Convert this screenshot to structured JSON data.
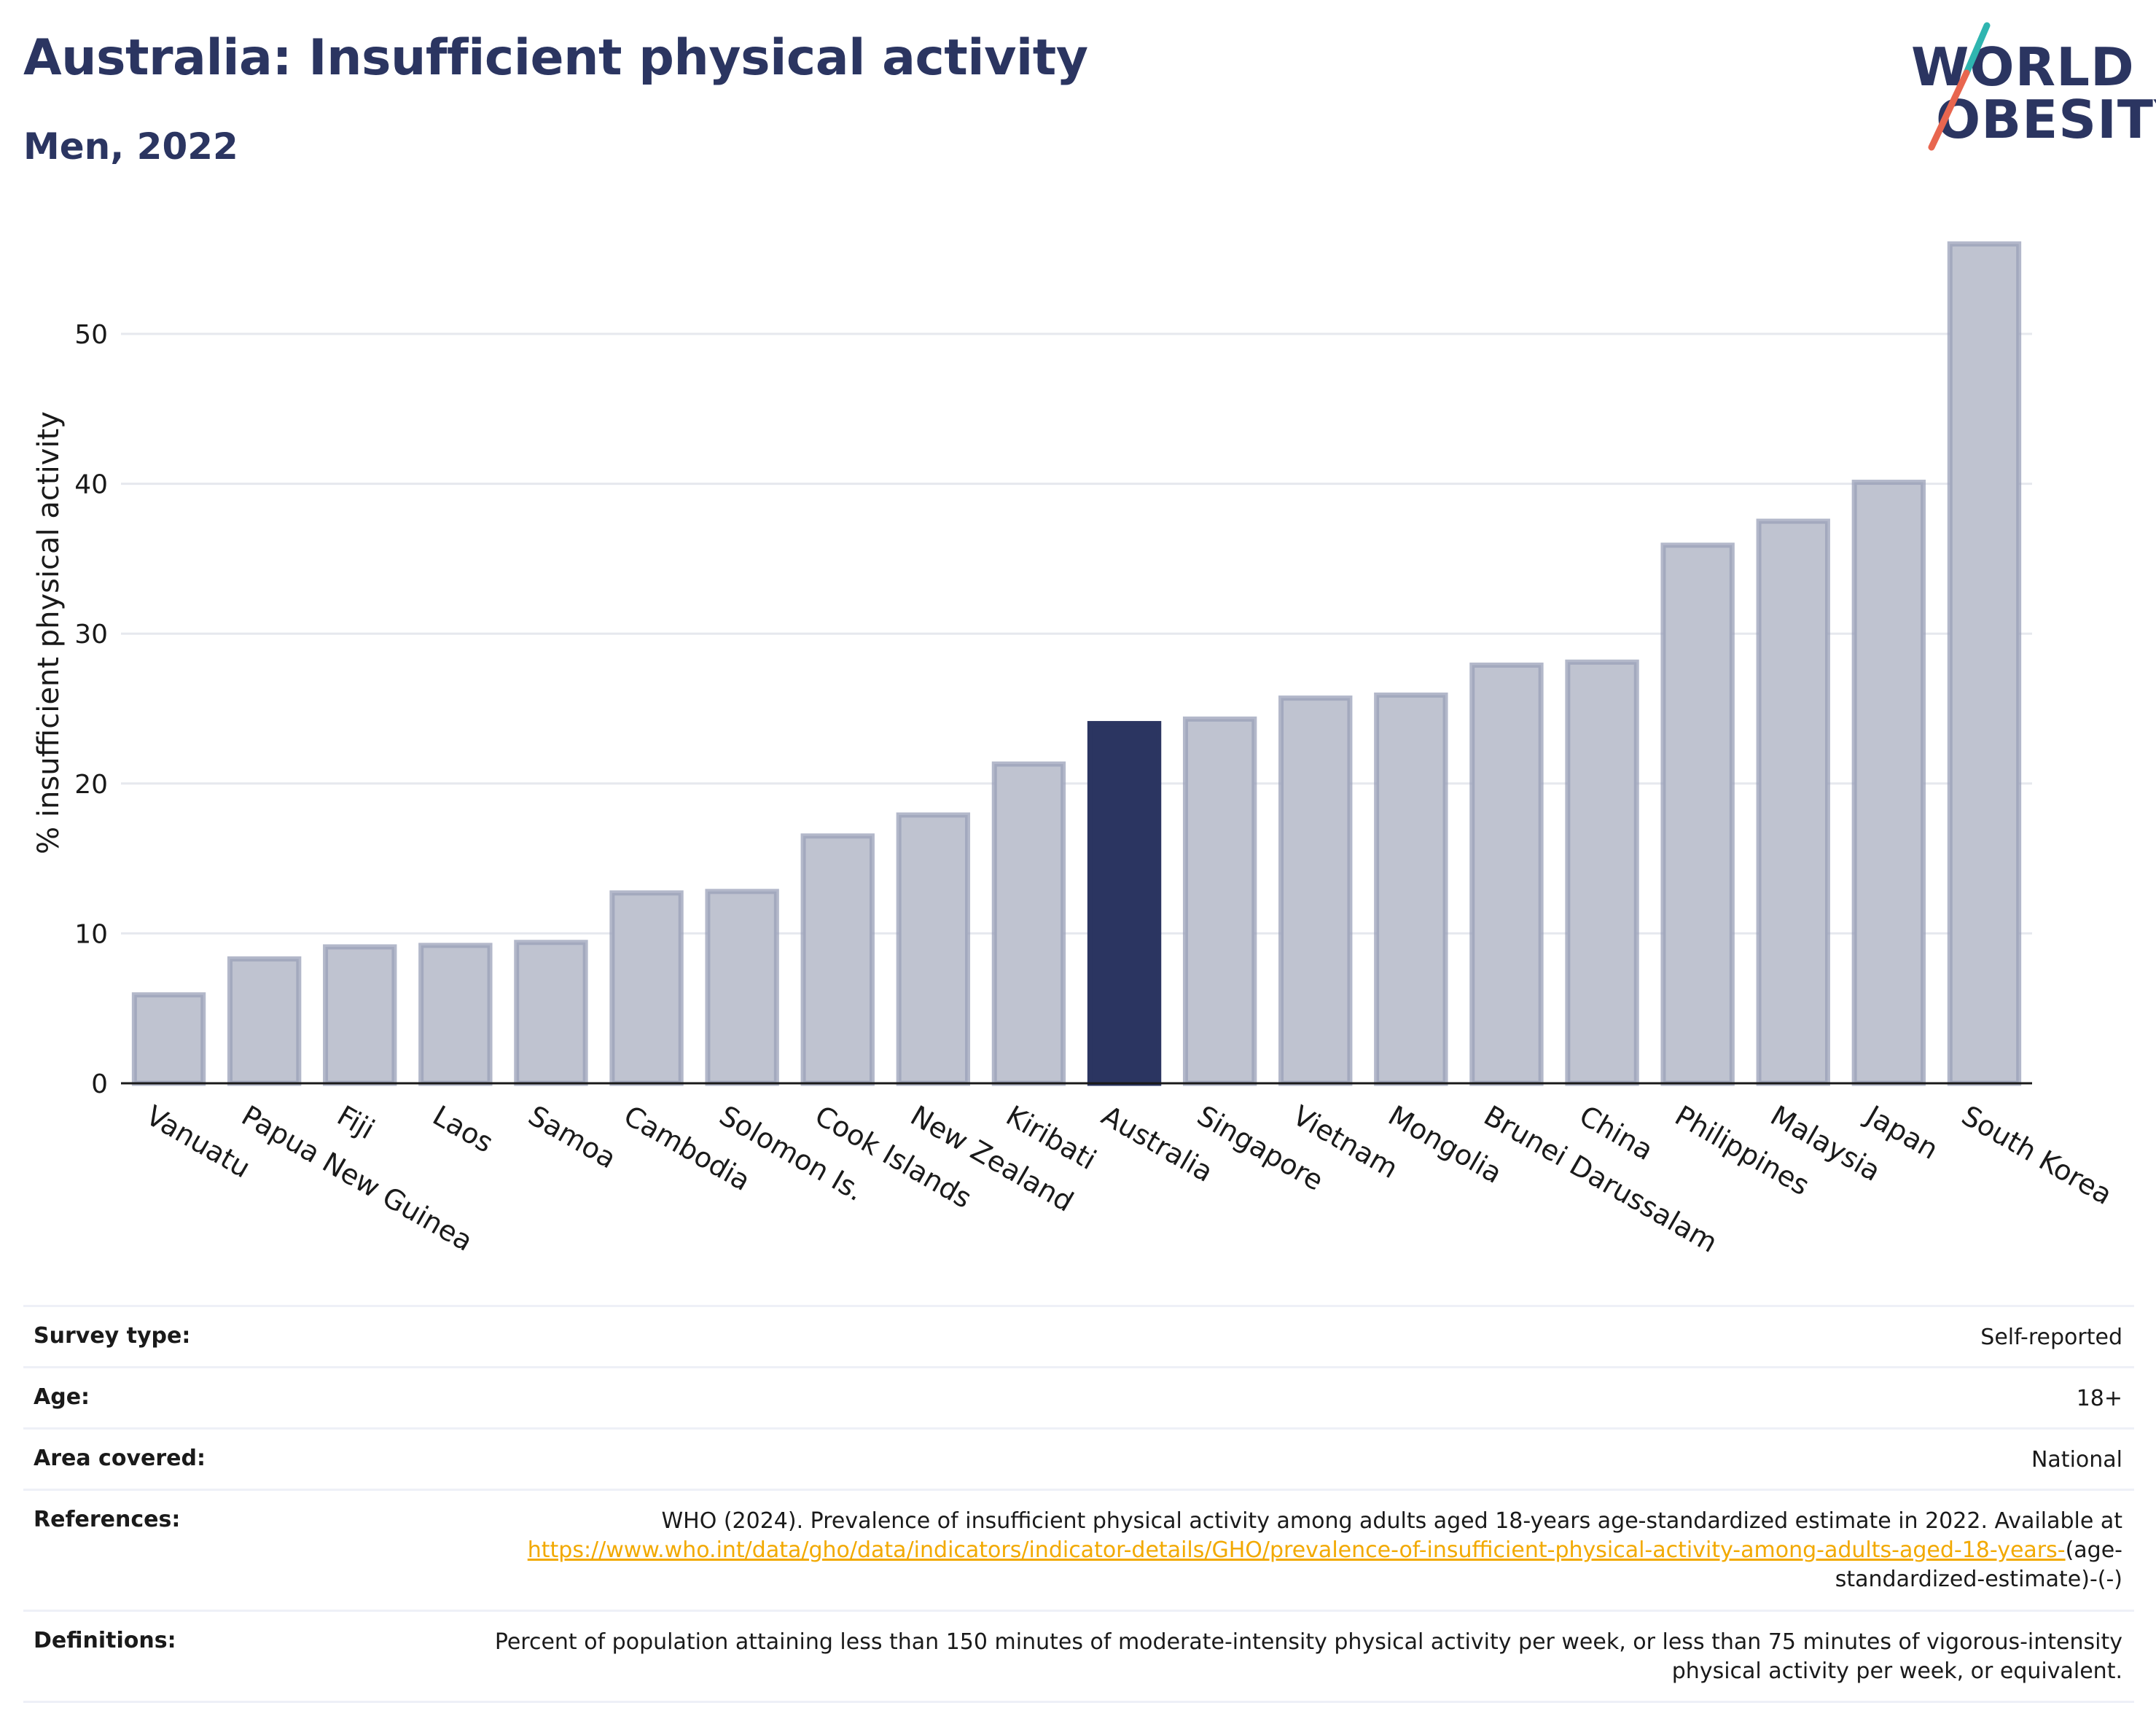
{
  "header": {
    "title": "Australia: Insufficient physical activity",
    "subtitle": "Men, 2022"
  },
  "logo": {
    "line1": "WORLD",
    "line2": "OBESITY",
    "colors": {
      "text": "#2b3561",
      "slash_teal": "#2fb5b0",
      "slash_coral": "#e8664f"
    }
  },
  "colors": {
    "highlight_bar": "#2b3561",
    "other_bar_fill": "#bfc3d0",
    "other_bar_stroke": "#9aa0b8",
    "grid": "#e6e8ee",
    "axis_text": "#1a1a1a",
    "link": "#f2a900"
  },
  "chart_data": {
    "type": "bar",
    "title": "",
    "xlabel": "",
    "ylabel": "% insufficient physical activity",
    "ylim": [
      0,
      57
    ],
    "yticks": [
      0,
      10,
      20,
      30,
      40,
      50
    ],
    "grid": true,
    "highlight": "Australia",
    "categories": [
      "Vanuatu",
      "Papua New Guinea",
      "Fiji",
      "Laos",
      "Samoa",
      "Cambodia",
      "Solomon Is.",
      "Cook Islands",
      "New Zealand",
      "Kiribati",
      "Australia",
      "Singapore",
      "Vietnam",
      "Mongolia",
      "Brunei Darussalam",
      "China",
      "Philippines",
      "Malaysia",
      "Japan",
      "South Korea"
    ],
    "values": [
      5.9,
      8.3,
      9.1,
      9.2,
      9.4,
      12.7,
      12.8,
      16.5,
      17.9,
      21.3,
      24.0,
      24.3,
      25.7,
      25.9,
      27.9,
      28.1,
      35.9,
      37.5,
      40.1,
      56.0
    ]
  },
  "meta": {
    "survey_type": {
      "label": "Survey type:",
      "value": "Self-reported"
    },
    "age": {
      "label": "Age:",
      "value": "18+"
    },
    "area": {
      "label": "Area covered:",
      "value": "National"
    },
    "references": {
      "label": "References:",
      "text_before": "WHO (2024). Prevalence of insufficient physical activity among adults aged 18-years age-standardized estimate in 2022. Available at",
      "link": "https://www.who.int/data/gho/data/indicators/indicator-details/GHO/prevalence-of-insufficient-physical-activity-among-adults-aged-18-years-",
      "text_after": "(age-standardized-estimate)-(-)"
    },
    "definitions": {
      "label": "Definitions:",
      "value": "Percent of population attaining less than 150 minutes of moderate-intensity physical activity per week, or less than 75 minutes of vigorous-intensity physical activity per week, or equivalent."
    }
  }
}
